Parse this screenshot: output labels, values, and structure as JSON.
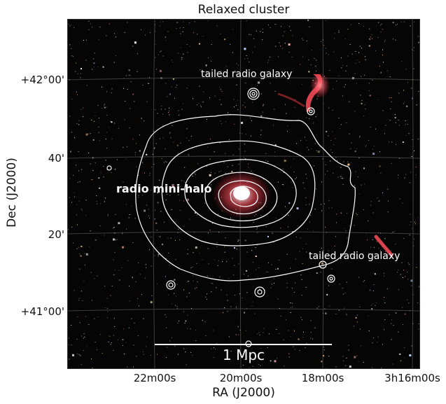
{
  "title": "Relaxed cluster",
  "axes": {
    "xlabel": "RA (J2000)",
    "ylabel": "Dec (J2000)",
    "xticks": [
      "22m00s",
      "20m00s",
      "18m00s",
      "3h16m00s"
    ],
    "yticks": [
      "+42°00'",
      "40'",
      "20'",
      "+41°00'"
    ]
  },
  "annotations": {
    "tailed_top": "tailed radio galaxy",
    "tailed_right": "tailed radio galaxy",
    "mini_halo": "radio mini-halo"
  },
  "scale_bar": {
    "label": "1 Mpc"
  },
  "colors": {
    "background": "#050505",
    "radio_emission": "#ff4d5a",
    "contours": "#ffffff",
    "grid": "#6e6e6e"
  }
}
